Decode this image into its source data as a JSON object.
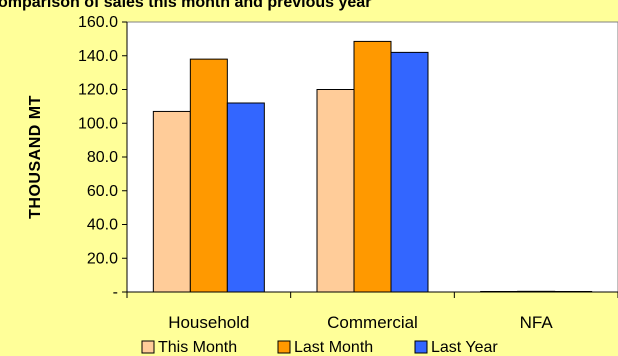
{
  "chart_data": {
    "type": "bar",
    "title": "omparison of sales this month and previous year",
    "ylabel": "THOUSAND  MT",
    "xlabel": "",
    "ylim": [
      0,
      160
    ],
    "yticks": [
      "-",
      "20.0",
      "40.0",
      "60.0",
      "80.0",
      "100.0",
      "120.0",
      "140.0",
      "160.0"
    ],
    "ytick_values": [
      0,
      20,
      40,
      60,
      80,
      100,
      120,
      140,
      160
    ],
    "categories": [
      "Household",
      "Commercial",
      "NFA"
    ],
    "series": [
      {
        "name": "This Month",
        "color": "#ffcc99",
        "values": [
          107,
          120,
          0.3
        ]
      },
      {
        "name": "Last Month",
        "color": "#ff9900",
        "values": [
          138,
          148.5,
          0.4
        ]
      },
      {
        "name": "Last Year",
        "color": "#3366ff",
        "values": [
          112,
          142,
          0.3
        ]
      }
    ],
    "grid": false,
    "legend_position": "bottom"
  }
}
